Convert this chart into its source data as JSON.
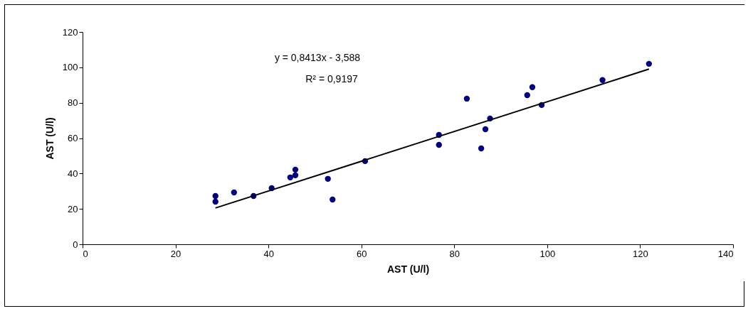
{
  "chart_data": {
    "type": "scatter",
    "xlabel": "AST (U/l)",
    "ylabel": "AST (U/l)",
    "xlim": [
      0,
      140
    ],
    "xticks": [
      0,
      20,
      40,
      60,
      80,
      100,
      120,
      140
    ],
    "ylim": [
      0,
      120
    ],
    "yticks": [
      0,
      20,
      40,
      60,
      80,
      100,
      120
    ],
    "grid": false,
    "annotations": [
      "y = 0,8413x - 3,588",
      "R² = 0,9197"
    ],
    "series": [
      {
        "color": "#000080",
        "marker": "circle",
        "x": [
          28.6,
          28.6,
          32.6,
          36.8,
          40.7,
          44.7,
          45.8,
          45.8,
          52.8,
          53.8,
          60.8,
          76.7,
          76.7,
          82.7,
          85.8,
          86.7,
          87.7,
          95.7,
          96.8,
          98.8,
          111.9,
          121.9
        ],
        "values": [
          27.3,
          24.1,
          29.3,
          27.3,
          31.7,
          37.8,
          42.2,
          39,
          37,
          25.3,
          47,
          61.8,
          56.2,
          82.3,
          54.2,
          65,
          71.1,
          84.3,
          88.8,
          78.7,
          92.8,
          102
        ]
      },
      {
        "type": "line",
        "color": "#000000",
        "line_style": "solid",
        "marker": "none",
        "x": [
          28.6,
          121.9
        ],
        "values": [
          20.5,
          99.0
        ]
      }
    ]
  }
}
